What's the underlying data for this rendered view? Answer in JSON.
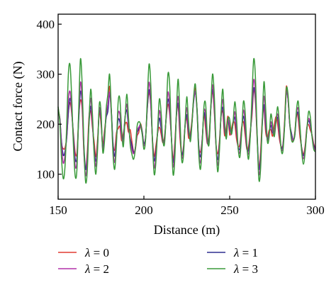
{
  "chart_data": {
    "type": "line",
    "title": "",
    "xlabel": "Distance (m)",
    "ylabel": "Contact force (N)",
    "xlim": [
      150,
      300
    ],
    "ylim": [
      50,
      420
    ],
    "xticks": [
      150,
      200,
      250,
      300
    ],
    "yticks": [
      100,
      200,
      300,
      400
    ],
    "grid": false,
    "legend_position": "below",
    "series": [
      {
        "name": "λ = 0",
        "color": "#e03c31",
        "x": [
          150,
          151,
          152,
          153,
          154,
          155,
          156,
          157,
          158,
          159,
          160,
          161,
          162,
          163,
          164,
          165,
          166,
          167,
          168,
          169,
          170,
          171,
          172,
          173,
          174,
          175,
          176,
          177,
          178,
          179,
          180,
          181,
          182,
          183,
          184,
          185,
          186,
          187,
          188,
          189,
          190,
          191,
          192,
          193,
          194,
          195,
          196,
          197,
          198,
          199,
          200,
          201,
          202,
          203,
          204,
          205,
          206,
          207,
          208,
          209,
          210,
          211,
          212,
          213,
          214,
          215,
          216,
          217,
          218,
          219,
          220,
          221,
          222,
          223,
          224,
          225,
          226,
          227,
          228,
          229,
          230,
          231,
          232,
          233,
          234,
          235,
          236,
          237,
          238,
          239,
          240,
          241,
          242,
          243,
          244,
          245,
          246,
          247,
          248,
          249,
          250,
          251,
          252,
          253,
          254,
          255,
          256,
          257,
          258,
          259,
          260,
          261,
          262,
          263,
          264,
          265,
          266,
          267,
          268,
          269,
          270,
          271,
          272,
          273,
          274,
          275,
          276,
          277,
          278,
          279,
          280,
          281,
          282,
          283,
          284,
          285,
          286,
          287,
          288,
          289,
          290,
          291,
          292,
          293,
          294,
          295,
          296,
          297,
          298,
          299,
          300
        ],
        "y": [
          229,
          212,
          162,
          151,
          153,
          174,
          224,
          243,
          218,
          178,
          142,
          144,
          214,
          248,
          230,
          145,
          110,
          144,
          215,
          226,
          193,
          165,
          135,
          170,
          225,
          201,
          161,
          186,
          215,
          228,
          276,
          226,
          161,
          149,
          183,
          191,
          195,
          167,
          181,
          199,
          203,
          184,
          189,
          166,
          145,
          149,
          176,
          183,
          201,
          186,
          161,
          175,
          232,
          263,
          238,
          170,
          136,
          157,
          182,
          194,
          181,
          163,
          175,
          212,
          240,
          221,
          175,
          130,
          162,
          220,
          235,
          174,
          138,
          153,
          197,
          212,
          173,
          181,
          208,
          251,
          272,
          229,
          156,
          145,
          171,
          221,
          190,
          161,
          178,
          234,
          266,
          226,
          160,
          141,
          166,
          217,
          224,
          178,
          190,
          216,
          179,
          190,
          205,
          200,
          170,
          156,
          161,
          195,
          205,
          179,
          150,
          156,
          186,
          217,
          268,
          246,
          172,
          112,
          144,
          209,
          232,
          184,
          174,
          188,
          189,
          176,
          198,
          215,
          199,
          170,
          156,
          158,
          206,
          275,
          250,
          201,
          182,
          166,
          185,
          223,
          210,
          174,
          153,
          140,
          157,
          194,
          199,
          188,
          179,
          161,
          152
        ]
      },
      {
        "name": "λ = 1",
        "color": "#2f2f8f",
        "x": [
          150,
          151,
          152,
          153,
          154,
          155,
          156,
          157,
          158,
          159,
          160,
          161,
          162,
          163,
          164,
          165,
          166,
          167,
          168,
          169,
          170,
          171,
          172,
          173,
          174,
          175,
          176,
          177,
          178,
          179,
          180,
          181,
          182,
          183,
          184,
          185,
          186,
          187,
          188,
          189,
          190,
          191,
          192,
          193,
          194,
          195,
          196,
          197,
          198,
          199,
          200,
          201,
          202,
          203,
          204,
          205,
          206,
          207,
          208,
          209,
          210,
          211,
          212,
          213,
          214,
          215,
          216,
          217,
          218,
          219,
          220,
          221,
          222,
          223,
          224,
          225,
          226,
          227,
          228,
          229,
          230,
          231,
          232,
          233,
          234,
          235,
          236,
          237,
          238,
          239,
          240,
          241,
          242,
          243,
          244,
          245,
          246,
          247,
          248,
          249,
          250,
          251,
          252,
          253,
          254,
          255,
          256,
          257,
          258,
          259,
          260,
          261,
          262,
          263,
          264,
          265,
          266,
          267,
          268,
          269,
          270,
          271,
          272,
          273,
          274,
          275,
          276,
          277,
          278,
          279,
          280,
          281,
          282,
          283,
          284,
          285,
          286,
          287,
          288,
          289,
          290,
          291,
          292,
          293,
          294,
          295,
          296,
          297,
          298,
          299,
          300
        ],
        "y": [
          226,
          211,
          164,
          138,
          146,
          172,
          225,
          252,
          222,
          173,
          129,
          136,
          208,
          265,
          241,
          159,
          110,
          134,
          201,
          236,
          200,
          152,
          126,
          160,
          228,
          210,
          152,
          179,
          213,
          226,
          262,
          228,
          162,
          136,
          172,
          209,
          204,
          176,
          173,
          214,
          228,
          195,
          172,
          158,
          143,
          152,
          181,
          190,
          199,
          185,
          161,
          175,
          232,
          269,
          241,
          168,
          127,
          146,
          183,
          212,
          193,
          165,
          170,
          214,
          250,
          229,
          175,
          124,
          151,
          219,
          241,
          187,
          142,
          149,
          196,
          219,
          184,
          175,
          203,
          245,
          263,
          229,
          155,
          135,
          170,
          222,
          205,
          163,
          171,
          230,
          270,
          234,
          162,
          129,
          159,
          216,
          233,
          189,
          180,
          211,
          190,
          183,
          201,
          214,
          185,
          152,
          154,
          190,
          216,
          193,
          152,
          149,
          180,
          226,
          272,
          252,
          181,
          112,
          131,
          199,
          239,
          196,
          169,
          182,
          198,
          183,
          184,
          208,
          212,
          181,
          154,
          157,
          198,
          263,
          250,
          201,
          182,
          169,
          178,
          218,
          221,
          186,
          151,
          137,
          152,
          190,
          207,
          197,
          177,
          158,
          150
        ]
      },
      {
        "name": "λ = 2",
        "color": "#b230a8",
        "x": [
          150,
          151,
          152,
          153,
          154,
          155,
          156,
          157,
          158,
          159,
          160,
          161,
          162,
          163,
          164,
          165,
          166,
          167,
          168,
          169,
          170,
          171,
          172,
          173,
          174,
          175,
          176,
          177,
          178,
          179,
          180,
          181,
          182,
          183,
          184,
          185,
          186,
          187,
          188,
          189,
          190,
          191,
          192,
          193,
          194,
          195,
          196,
          197,
          198,
          199,
          200,
          201,
          202,
          203,
          204,
          205,
          206,
          207,
          208,
          209,
          210,
          211,
          212,
          213,
          214,
          215,
          216,
          217,
          218,
          219,
          220,
          221,
          222,
          223,
          224,
          225,
          226,
          227,
          228,
          229,
          230,
          231,
          232,
          233,
          234,
          235,
          236,
          237,
          238,
          239,
          240,
          241,
          242,
          243,
          244,
          245,
          246,
          247,
          248,
          249,
          250,
          251,
          252,
          253,
          254,
          255,
          256,
          257,
          258,
          259,
          260,
          261,
          262,
          263,
          264,
          265,
          266,
          267,
          268,
          269,
          270,
          271,
          272,
          273,
          274,
          275,
          276,
          277,
          278,
          279,
          280,
          281,
          282,
          283,
          284,
          285,
          286,
          287,
          288,
          289,
          290,
          291,
          292,
          293,
          294,
          295,
          296,
          297,
          298,
          299,
          300
        ],
        "y": [
          229,
          207,
          154,
          122,
          138,
          181,
          250,
          265,
          223,
          163,
          115,
          128,
          219,
          284,
          247,
          145,
          97,
          127,
          209,
          252,
          202,
          144,
          116,
          158,
          230,
          214,
          149,
          173,
          219,
          240,
          264,
          221,
          149,
          124,
          169,
          221,
          219,
          175,
          166,
          213,
          240,
          201,
          166,
          150,
          141,
          153,
          185,
          194,
          195,
          181,
          157,
          172,
          240,
          284,
          248,
          164,
          113,
          137,
          186,
          227,
          206,
          168,
          167,
          216,
          264,
          240,
          174,
          115,
          145,
          222,
          255,
          195,
          136,
          143,
          198,
          233,
          192,
          170,
          201,
          248,
          265,
          222,
          146,
          123,
          166,
          226,
          219,
          166,
          165,
          232,
          279,
          237,
          158,
          118,
          152,
          220,
          249,
          197,
          175,
          209,
          197,
          179,
          202,
          225,
          193,
          150,
          145,
          188,
          228,
          205,
          154,
          141,
          177,
          236,
          289,
          262,
          176,
          102,
          121,
          204,
          256,
          207,
          166,
          181,
          205,
          188,
          181,
          207,
          220,
          187,
          151,
          153,
          197,
          262,
          251,
          199,
          176,
          168,
          182,
          223,
          231,
          190,
          147,
          131,
          150,
          190,
          211,
          203,
          177,
          155,
          148
        ]
      },
      {
        "name": "λ = 3",
        "color": "#3a9a3a",
        "x": [
          150,
          151,
          152,
          153,
          154,
          155,
          156,
          157,
          158,
          159,
          160,
          161,
          162,
          163,
          164,
          165,
          166,
          167,
          168,
          169,
          170,
          171,
          172,
          173,
          174,
          175,
          176,
          177,
          178,
          179,
          180,
          181,
          182,
          183,
          184,
          185,
          186,
          187,
          188,
          189,
          190,
          191,
          192,
          193,
          194,
          195,
          196,
          197,
          198,
          199,
          200,
          201,
          202,
          203,
          204,
          205,
          206,
          207,
          208,
          209,
          210,
          211,
          212,
          213,
          214,
          215,
          216,
          217,
          218,
          219,
          220,
          221,
          222,
          223,
          224,
          225,
          226,
          227,
          228,
          229,
          230,
          231,
          232,
          233,
          234,
          235,
          236,
          237,
          238,
          239,
          240,
          241,
          242,
          243,
          244,
          245,
          246,
          247,
          248,
          249,
          250,
          251,
          252,
          253,
          254,
          255,
          256,
          257,
          258,
          259,
          260,
          261,
          262,
          263,
          264,
          265,
          266,
          267,
          268,
          269,
          270,
          271,
          272,
          273,
          274,
          275,
          276,
          277,
          278,
          279,
          280,
          281,
          282,
          283,
          284,
          285,
          286,
          287,
          288,
          289,
          290,
          291,
          292,
          293,
          294,
          295,
          296,
          297,
          298,
          299,
          300
        ],
        "y": [
          235,
          204,
          130,
          91,
          115,
          198,
          302,
          317,
          245,
          150,
          95,
          112,
          230,
          330,
          280,
          160,
          85,
          108,
          205,
          270,
          220,
          140,
          100,
          150,
          240,
          225,
          145,
          165,
          230,
          260,
          300,
          230,
          140,
          110,
          160,
          245,
          250,
          190,
          155,
          210,
          260,
          215,
          160,
          140,
          130,
          150,
          195,
          205,
          200,
          180,
          150,
          170,
          250,
          320,
          280,
          165,
          100,
          125,
          190,
          250,
          225,
          170,
          160,
          220,
          300,
          280,
          180,
          100,
          130,
          230,
          290,
          215,
          130,
          135,
          200,
          255,
          205,
          165,
          200,
          255,
          280,
          225,
          140,
          110,
          160,
          235,
          240,
          175,
          160,
          235,
          300,
          260,
          165,
          105,
          145,
          225,
          270,
          210,
          170,
          210,
          210,
          180,
          205,
          245,
          210,
          150,
          135,
          185,
          245,
          225,
          160,
          130,
          175,
          255,
          330,
          295,
          180,
          90,
          110,
          205,
          285,
          230,
          165,
          175,
          220,
          200,
          175,
          205,
          235,
          200,
          150,
          145,
          195,
          270,
          260,
          205,
          170,
          165,
          180,
          230,
          245,
          195,
          145,
          120,
          145,
          190,
          225,
          215,
          175,
          150,
          145
        ]
      }
    ]
  }
}
